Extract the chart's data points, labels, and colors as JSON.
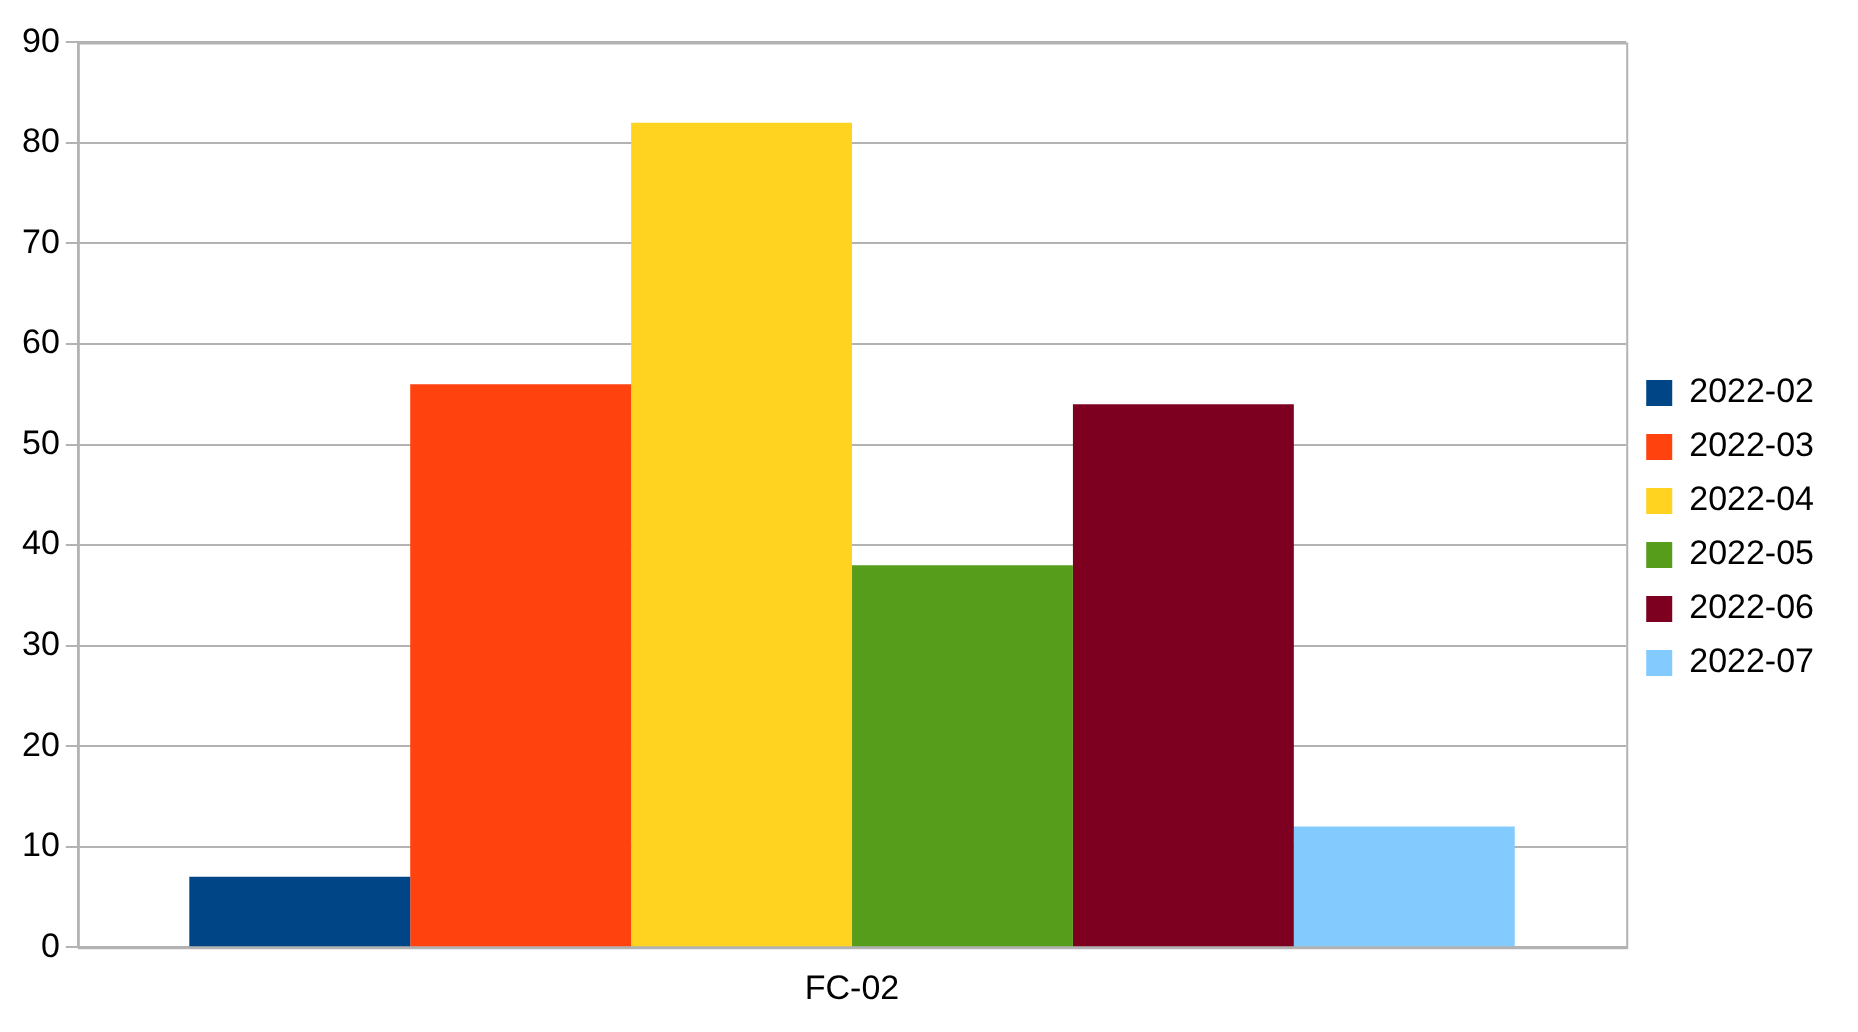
{
  "chart_data": {
    "type": "bar",
    "categories": [
      "FC-02"
    ],
    "series": [
      {
        "name": "2022-02",
        "color": "#004586",
        "values": [
          7
        ]
      },
      {
        "name": "2022-03",
        "color": "#ff420e",
        "values": [
          56
        ]
      },
      {
        "name": "2022-04",
        "color": "#ffd320",
        "values": [
          82
        ]
      },
      {
        "name": "2022-05",
        "color": "#579d1c",
        "values": [
          38
        ]
      },
      {
        "name": "2022-06",
        "color": "#7e0021",
        "values": [
          54
        ]
      },
      {
        "name": "2022-07",
        "color": "#83caff",
        "values": [
          12
        ]
      }
    ],
    "ylim": [
      0,
      90
    ],
    "yticks": [
      0,
      10,
      20,
      30,
      40,
      50,
      60,
      70,
      80,
      90
    ],
    "grid": "y",
    "legend": "right"
  }
}
